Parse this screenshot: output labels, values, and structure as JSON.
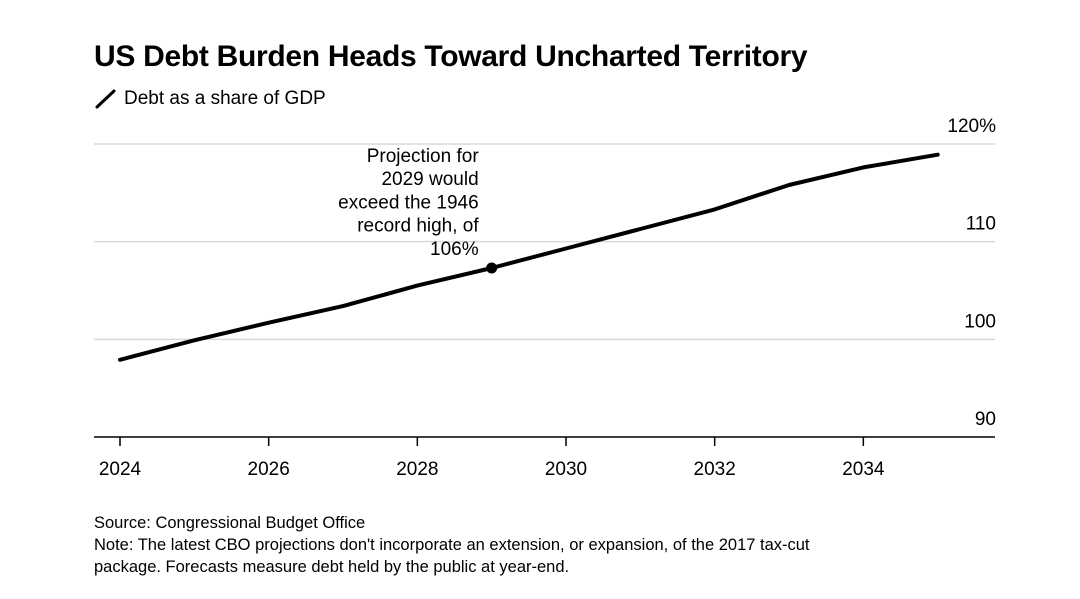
{
  "header": {
    "title": "US Debt Burden Heads Toward Uncharted Territory"
  },
  "legend": {
    "label": "Debt as a share of GDP",
    "icon": "diagonal-line-icon",
    "color": "#000000"
  },
  "chart_data": {
    "type": "line",
    "title": "US Debt Burden Heads Toward Uncharted Territory",
    "xlabel": "",
    "ylabel": "",
    "xlim": [
      2024,
      2036
    ],
    "ylim": [
      90,
      120
    ],
    "x_ticks": [
      2024,
      2026,
      2028,
      2030,
      2032,
      2034
    ],
    "y_ticks": [
      {
        "value": 120,
        "label": "120%"
      },
      {
        "value": 110,
        "label": "110"
      },
      {
        "value": 100,
        "label": "100"
      },
      {
        "value": 90,
        "label": "90"
      }
    ],
    "grid": true,
    "y_axis_side": "right",
    "series": [
      {
        "name": "Debt as a share of GDP",
        "color": "#000000",
        "x": [
          2024,
          2025,
          2026,
          2027,
          2028,
          2029,
          2030,
          2031,
          2032,
          2033,
          2034,
          2035
        ],
        "y": [
          97.9,
          99.9,
          101.7,
          103.4,
          105.5,
          107.3,
          109.3,
          111.3,
          113.3,
          115.8,
          117.6,
          118.9
        ]
      }
    ],
    "annotations": [
      {
        "x": 2029,
        "y": 107.3,
        "lines": [
          "Projection for",
          "2029 would",
          "exceed the 1946",
          "record high, of",
          "106%"
        ],
        "marker": "dot"
      }
    ]
  },
  "footer": {
    "source": "Source: Congressional Budget Office",
    "note_line1": "Note: The latest CBO projections don't incorporate an extension, or expansion, of the 2017 tax-cut",
    "note_line2": "package. Forecasts measure debt held by the public at year-end."
  }
}
